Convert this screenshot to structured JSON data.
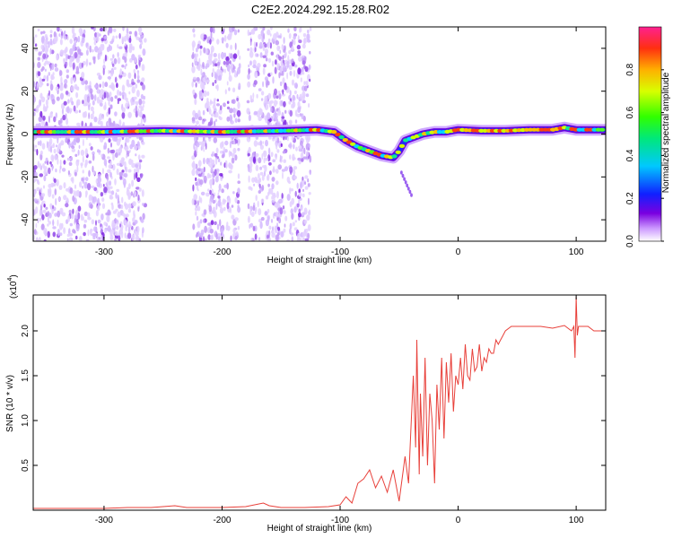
{
  "title": "C2E2.2024.292.15.28.R02",
  "chart_data": [
    {
      "type": "heatmap",
      "xlabel": "Height of straight line (km)",
      "ylabel": "Frequency (Hz)",
      "xlim": [
        -360,
        125
      ],
      "ylim": [
        -50,
        50
      ],
      "xticks": [
        -300,
        -200,
        -100,
        0,
        100
      ],
      "xtick_labels": [
        "-300",
        "-200",
        "-100",
        "0",
        "100"
      ],
      "yticks": [
        -40,
        -20,
        0,
        20,
        40
      ],
      "ytick_labels": [
        "-40",
        "-20",
        "0",
        "20",
        "40"
      ],
      "noise_bands_km": [
        [
          -360,
          -265
        ],
        [
          -225,
          -185
        ],
        [
          -178,
          -125
        ]
      ],
      "ridge": {
        "x": [
          -360,
          -300,
          -250,
          -200,
          -150,
          -120,
          -105,
          -95,
          -85,
          -75,
          -65,
          -55,
          -50,
          -45,
          -40,
          -30,
          -20,
          -10,
          0,
          20,
          40,
          60,
          80,
          90,
          100,
          110,
          125
        ],
        "y": [
          1,
          1,
          1.5,
          1,
          1.5,
          2,
          1,
          -3,
          -6,
          -8,
          -10,
          -11,
          -8,
          -3,
          -2,
          0,
          1,
          1,
          2,
          1.5,
          1.5,
          2,
          2,
          3,
          2,
          2,
          2
        ]
      },
      "colorbar": {
        "label": "Normalized spectral amplitude",
        "range": [
          0,
          1
        ],
        "ticks": [
          0.0,
          0.2,
          0.4,
          0.6,
          0.8
        ],
        "tick_labels": [
          "0.0",
          "0.2",
          "0.4",
          "0.6",
          "0.8"
        ]
      },
      "grid": false
    },
    {
      "type": "line",
      "xlabel": "Height of straight line (km)",
      "ylabel": "SNR (10 * v/v)",
      "y_multiplier": "(x10",
      "y_multiplier_exp": "4",
      "xlim": [
        -360,
        125
      ],
      "ylim": [
        0,
        2.4
      ],
      "xticks": [
        -300,
        -200,
        -100,
        0,
        100
      ],
      "xtick_labels": [
        "-300",
        "-200",
        "-100",
        "0",
        "100"
      ],
      "yticks": [
        0.5,
        1.0,
        1.5,
        2.0
      ],
      "ytick_labels": [
        "0.5",
        "1.0",
        "1.5",
        "2.0"
      ],
      "color": "#e8403a",
      "series": [
        {
          "x": [
            -360,
            -330,
            -300,
            -280,
            -260,
            -240,
            -230,
            -220,
            -200,
            -180,
            -165,
            -160,
            -150,
            -130,
            -110,
            -100,
            -95,
            -90,
            -85,
            -80,
            -75,
            -70,
            -65,
            -60,
            -55,
            -50,
            -45,
            -42,
            -40,
            -38,
            -36,
            -35,
            -33,
            -32,
            -30,
            -28,
            -26,
            -24,
            -22,
            -20,
            -18,
            -16,
            -14,
            -12,
            -10,
            -8,
            -6,
            -4,
            -2,
            0,
            2,
            4,
            6,
            8,
            10,
            12,
            14,
            16,
            18,
            20,
            22,
            24,
            26,
            28,
            30,
            32,
            34,
            36,
            38,
            40,
            45,
            50,
            60,
            70,
            80,
            90,
            96,
            98,
            99,
            100,
            101,
            102,
            104,
            110,
            115,
            120,
            125
          ],
          "y": [
            0.02,
            0.02,
            0.02,
            0.03,
            0.03,
            0.05,
            0.03,
            0.03,
            0.03,
            0.04,
            0.08,
            0.05,
            0.03,
            0.03,
            0.04,
            0.06,
            0.15,
            0.08,
            0.3,
            0.35,
            0.45,
            0.25,
            0.38,
            0.2,
            0.45,
            0.1,
            0.6,
            0.3,
            0.9,
            1.5,
            0.7,
            1.9,
            0.4,
            1.3,
            0.6,
            1.7,
            0.5,
            1.3,
            1.0,
            0.3,
            1.4,
            0.9,
            1.7,
            0.8,
            1.65,
            1.2,
            1.75,
            1.1,
            1.5,
            1.4,
            1.7,
            1.35,
            1.85,
            1.5,
            1.45,
            1.8,
            1.55,
            1.6,
            1.85,
            1.55,
            1.7,
            1.65,
            1.8,
            1.75,
            1.75,
            1.9,
            1.85,
            1.9,
            1.95,
            2.0,
            2.05,
            2.05,
            2.05,
            2.05,
            2.03,
            2.06,
            2.0,
            2.05,
            1.7,
            2.38,
            1.95,
            2.05,
            2.05,
            2.05,
            2.0,
            2.0,
            2.0
          ]
        }
      ],
      "grid": false
    }
  ]
}
